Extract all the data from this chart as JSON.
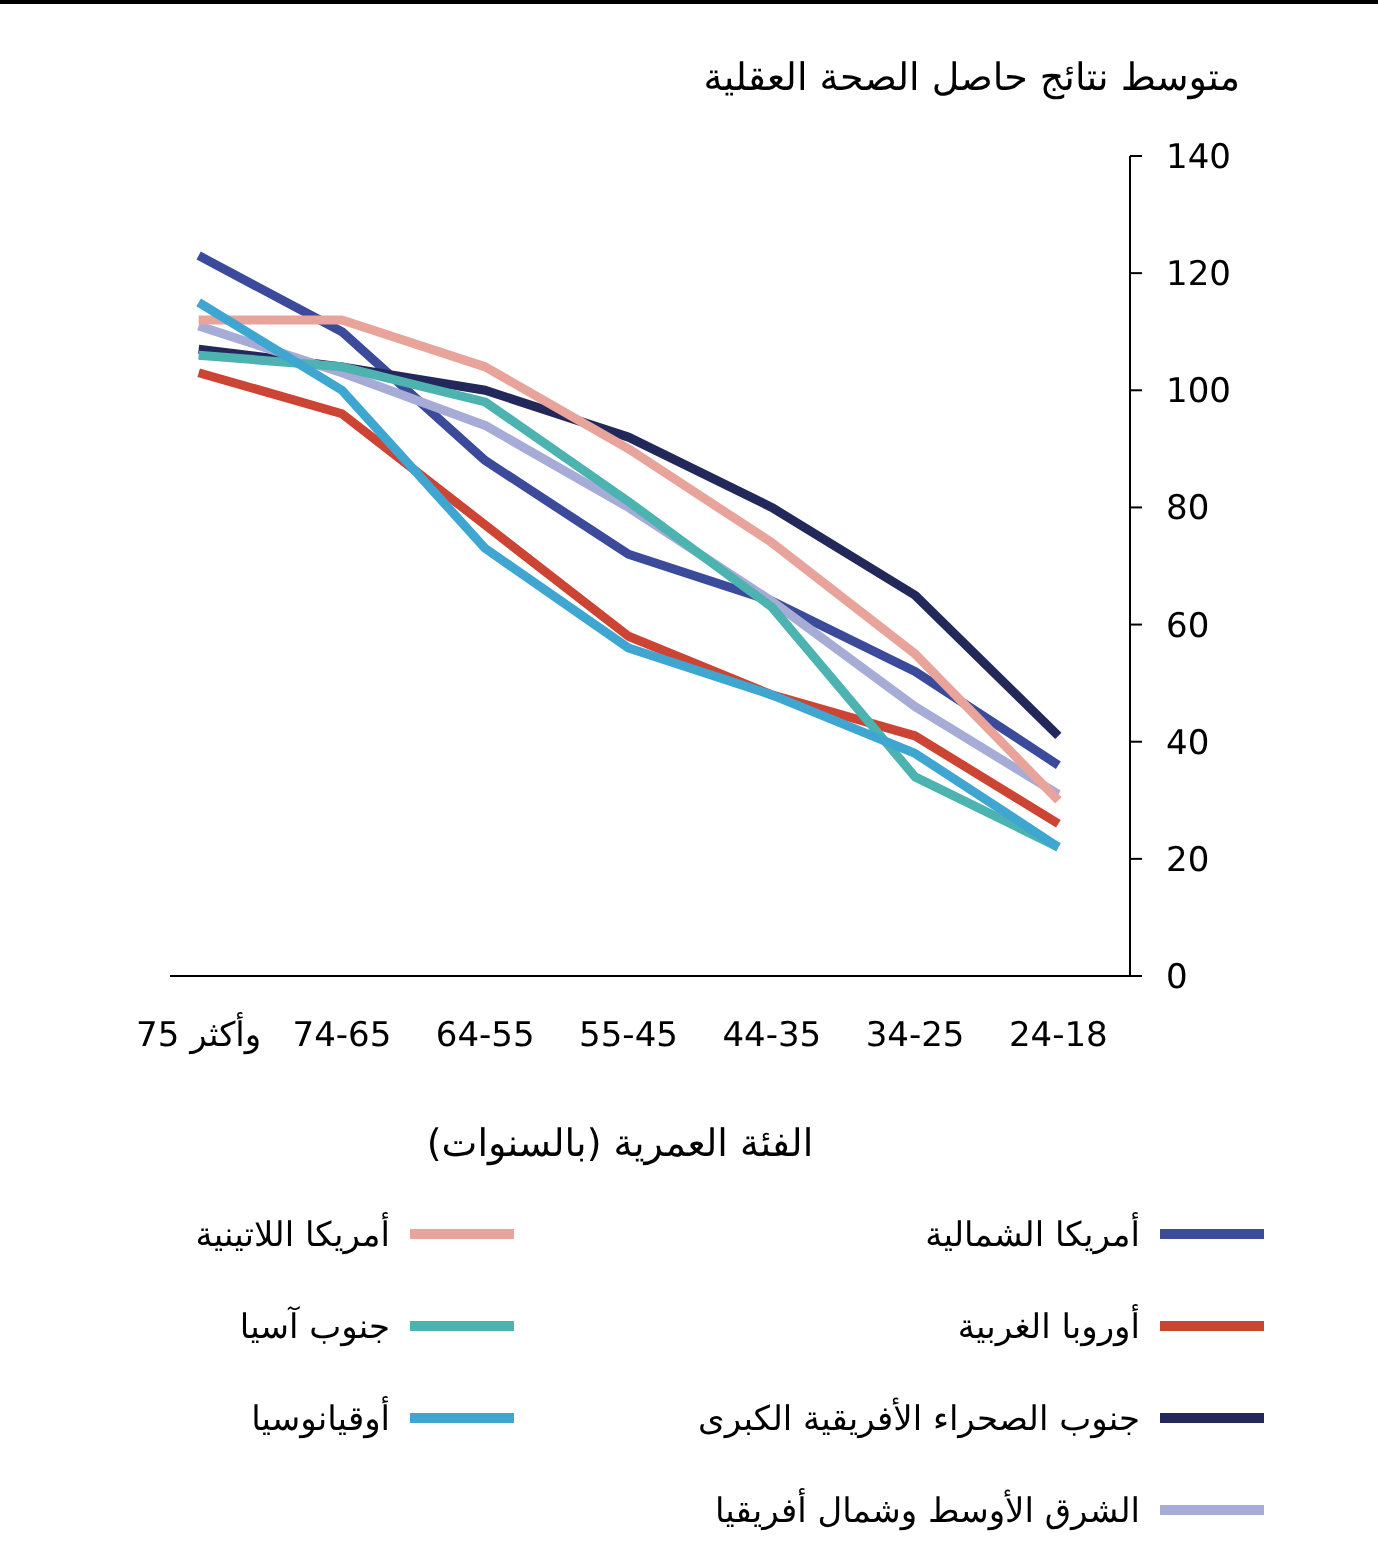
{
  "chart_data": {
    "type": "line",
    "title": "متوسط نتائج حاصل الصحة العقلية",
    "xlabel": "الفئة العمرية (بالسنوات)",
    "categories": [
      "75 وأكثر",
      "74-65",
      "64-55",
      "55-45",
      "44-35",
      "34-25",
      "24-18"
    ],
    "ylim": [
      0,
      140
    ],
    "yticks": [
      0,
      20,
      40,
      60,
      80,
      100,
      120,
      140
    ],
    "grid": false,
    "legend": "bottom",
    "marker": "none",
    "line_style": "solid",
    "series": [
      {
        "name": "أمريكا الشمالية",
        "color": "#3b4a9a",
        "values": [
          123,
          110,
          88,
          72,
          64,
          52,
          36
        ]
      },
      {
        "name": "أوروبا الغربية",
        "color": "#cc4433",
        "values": [
          103,
          96,
          77,
          58,
          48,
          41,
          26
        ]
      },
      {
        "name": "جنوب الصحراء الأفريقية الكبرى",
        "color": "#23285a",
        "values": [
          107,
          104,
          100,
          92,
          80,
          65,
          41
        ]
      },
      {
        "name": "الشرق الأوسط وشمال أفريقيا",
        "color": "#a6acd6",
        "values": [
          111,
          103,
          94,
          80,
          64,
          46,
          31
        ]
      },
      {
        "name": "أمريكا اللاتينية",
        "color": "#e8a49a",
        "values": [
          112,
          112,
          104,
          90,
          74,
          55,
          30
        ]
      },
      {
        "name": "جنوب آسيا",
        "color": "#4db3b0",
        "values": [
          106,
          104,
          98,
          81,
          63,
          34,
          22
        ]
      },
      {
        "name": "أوقيانوسيا",
        "color": "#3ea6d0",
        "values": [
          115,
          100,
          73,
          56,
          48,
          38,
          22
        ]
      }
    ]
  }
}
